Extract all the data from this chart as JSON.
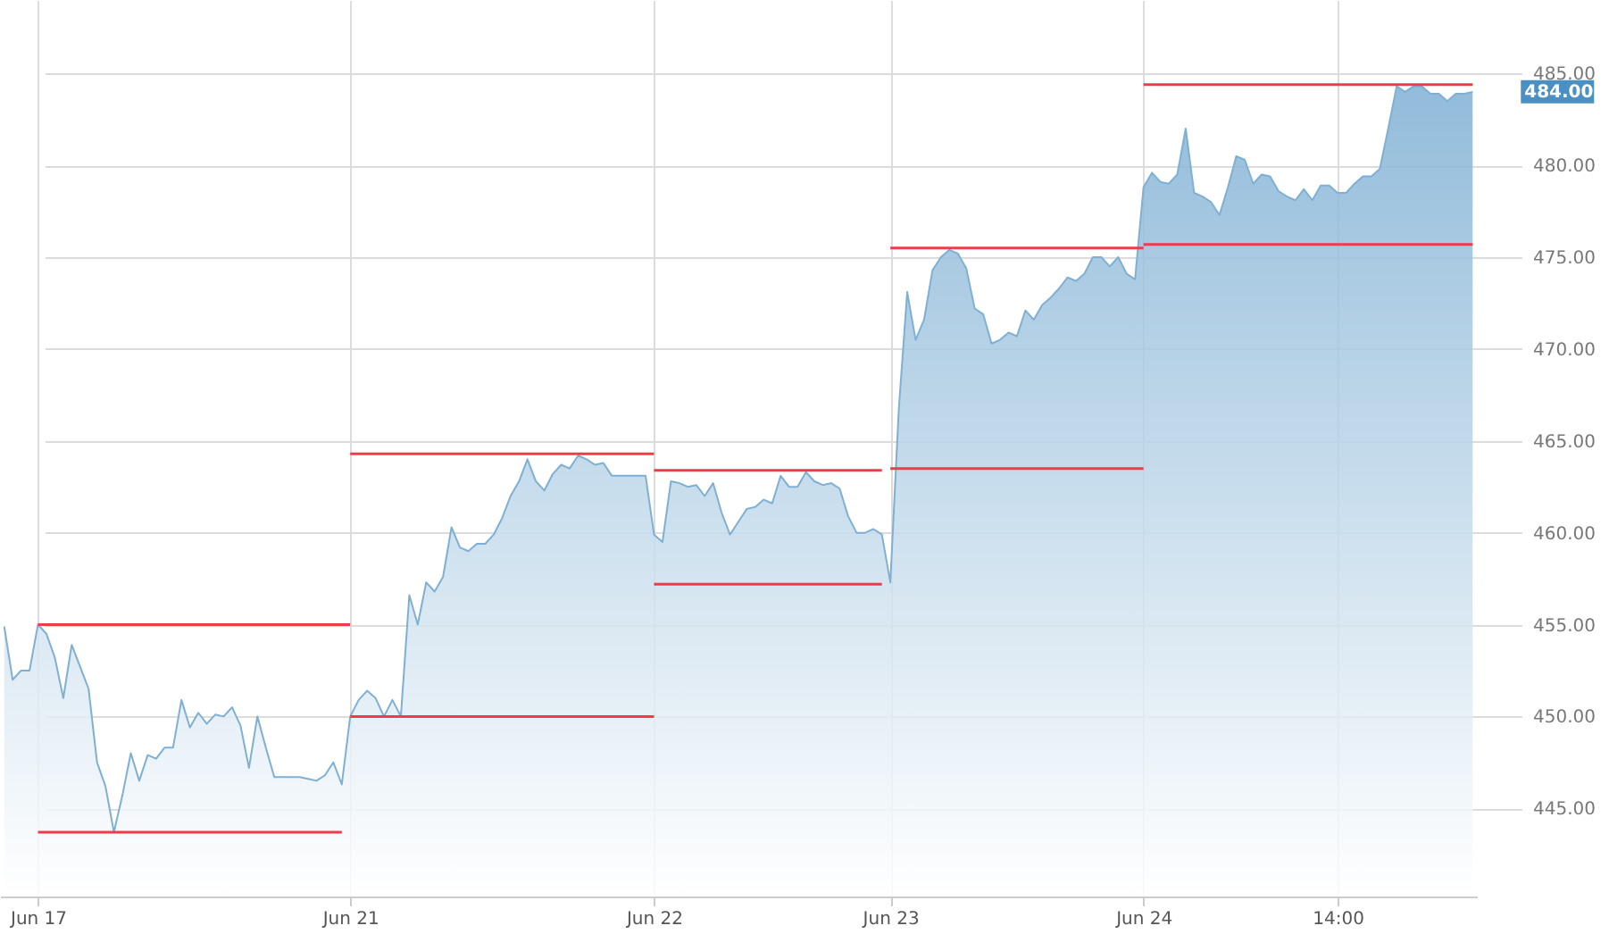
{
  "chart_data": {
    "type": "area",
    "ylim": [
      440.2,
      489
    ],
    "categories": [
      null,
      null,
      null,
      null,
      "Jun 17",
      null,
      null,
      null,
      null,
      null,
      null,
      null,
      null,
      null,
      null,
      null,
      null,
      null,
      null,
      null,
      null,
      null,
      null,
      null,
      null,
      null,
      null,
      null,
      null,
      null,
      null,
      null,
      null,
      null,
      null,
      null,
      null,
      null,
      null,
      null,
      null,
      "Jun 21",
      null,
      null,
      null,
      null,
      null,
      null,
      null,
      null,
      null,
      null,
      null,
      null,
      null,
      null,
      null,
      null,
      null,
      null,
      null,
      null,
      null,
      null,
      null,
      null,
      null,
      null,
      null,
      null,
      null,
      null,
      null,
      null,
      null,
      null,
      null,
      "Jun 22",
      null,
      null,
      null,
      null,
      null,
      null,
      null,
      null,
      null,
      null,
      null,
      null,
      null,
      null,
      null,
      null,
      null,
      null,
      null,
      null,
      null,
      null,
      null,
      null,
      null,
      null,
      null,
      "Jun 23",
      null,
      null,
      null,
      null,
      null,
      null,
      null,
      null,
      null,
      null,
      null,
      null,
      null,
      null,
      null,
      null,
      null,
      null,
      null,
      null,
      null,
      null,
      null,
      null,
      null,
      null,
      null,
      null,
      null,
      "Jun 24",
      null,
      null,
      null,
      null,
      null,
      null,
      null,
      null,
      null,
      null,
      null,
      null,
      null,
      null,
      null,
      null,
      null,
      null,
      null,
      null,
      null,
      null,
      "14:00",
      null,
      null,
      null,
      null,
      null,
      null,
      null,
      null,
      null,
      null,
      null,
      null,
      null,
      null,
      null,
      null
    ],
    "yticks": [
      {
        "value": 445,
        "label": "445.00"
      },
      {
        "value": 450,
        "label": "450.00"
      },
      {
        "value": 455,
        "label": "455.00"
      },
      {
        "value": 460,
        "label": "460.00"
      },
      {
        "value": 465,
        "label": "465.00"
      },
      {
        "value": 470,
        "label": "470.00"
      },
      {
        "value": 475,
        "label": "475.00"
      },
      {
        "value": 480,
        "label": "480.00"
      },
      {
        "value": 485,
        "label": "485.00"
      }
    ],
    "grid": true,
    "annotations": [
      "484.00"
    ],
    "series": [
      {
        "color": "#7fb0d4",
        "values": [
          454.9,
          452.0,
          452.5,
          452.5,
          455.0,
          454.5,
          453.2,
          451.0,
          453.9,
          452.7,
          451.5,
          447.5,
          446.2,
          443.7,
          445.7,
          448.0,
          446.5,
          447.9,
          447.7,
          448.3,
          448.3,
          450.9,
          449.4,
          450.2,
          449.6,
          450.1,
          450.0,
          450.5,
          449.5,
          447.2,
          450.0,
          448.3,
          446.7,
          446.7,
          446.7,
          446.7,
          446.6,
          446.5,
          446.8,
          447.5,
          446.3,
          450.0,
          450.9,
          451.4,
          451.0,
          450.0,
          450.9,
          450.0,
          456.6,
          455.0,
          457.3,
          456.8,
          457.6,
          460.3,
          459.2,
          459.0,
          459.4,
          459.4,
          459.9,
          460.8,
          462.0,
          462.8,
          464.0,
          462.8,
          462.3,
          463.2,
          463.7,
          463.5,
          464.2,
          464.0,
          463.7,
          463.8,
          463.1,
          463.1,
          463.1,
          463.1,
          463.1,
          459.9,
          459.5,
          462.8,
          462.7,
          462.5,
          462.6,
          462.0,
          462.7,
          461.1,
          459.9,
          460.6,
          461.3,
          461.4,
          461.8,
          461.6,
          463.1,
          462.5,
          462.5,
          463.3,
          462.8,
          462.6,
          462.7,
          462.4,
          460.9,
          460.0,
          460.0,
          460.2,
          459.9,
          457.3,
          466.7,
          473.1,
          470.5,
          471.6,
          474.3,
          475.0,
          475.4,
          475.2,
          474.4,
          472.2,
          471.9,
          470.3,
          470.5,
          470.9,
          470.7,
          472.1,
          471.6,
          472.4,
          472.8,
          473.3,
          473.9,
          473.7,
          474.1,
          475.0,
          475.0,
          474.5,
          475.0,
          474.1,
          473.8,
          478.8,
          479.6,
          479.1,
          479.0,
          479.5,
          482.0,
          478.5,
          478.3,
          478.0,
          477.3,
          478.8,
          480.5,
          480.3,
          479.0,
          479.5,
          479.4,
          478.6,
          478.3,
          478.1,
          478.7,
          478.1,
          478.9,
          478.9,
          478.5,
          478.5,
          479.0,
          479.4,
          479.4,
          479.8,
          482.0,
          484.3,
          484.0,
          484.3,
          484.3,
          483.9,
          483.9,
          483.5,
          483.9,
          483.9,
          484.0
        ]
      },
      {
        "type": "line",
        "color": "#ef3b4a",
        "values": [
          null,
          null,
          null,
          null,
          455.0,
          null,
          null,
          null,
          null,
          null,
          null,
          null,
          null,
          null,
          null,
          null,
          null,
          null,
          null,
          null,
          null,
          null,
          null,
          null,
          null,
          null,
          null,
          null,
          null,
          null,
          null,
          null,
          null,
          null,
          null,
          null,
          null,
          null,
          null,
          null,
          null,
          455.0,
          null,
          null,
          null,
          null,
          null,
          null,
          null,
          null,
          null,
          null,
          null,
          null,
          null,
          null,
          null,
          null,
          null,
          null,
          null,
          null,
          null,
          null,
          null,
          null,
          null,
          null,
          null,
          null,
          null,
          null,
          null,
          null,
          null,
          null,
          null,
          null,
          null,
          null,
          null,
          null,
          null,
          null,
          null,
          null,
          null,
          null,
          null,
          null,
          null,
          null,
          null,
          null,
          null,
          null,
          null,
          null,
          null,
          null,
          null,
          null,
          null,
          null,
          null,
          null,
          null,
          null,
          null,
          null,
          null,
          null,
          null,
          null,
          null,
          null,
          null,
          null,
          null,
          null,
          null,
          null,
          null,
          null,
          null,
          null,
          null,
          null,
          null,
          null,
          null,
          null,
          null,
          null,
          null,
          null,
          null,
          null,
          null,
          null,
          null,
          null,
          null,
          null,
          null,
          null,
          null,
          null,
          null,
          null,
          null,
          null,
          null,
          null,
          null,
          null,
          null,
          null,
          null,
          null,
          null,
          null,
          null,
          null,
          null,
          null,
          null,
          null,
          null,
          null,
          null,
          null,
          null,
          null,
          null
        ]
      },
      {
        "type": "line",
        "color": "#ef3b4a",
        "values": [
          null,
          null,
          null,
          null,
          443.7,
          null,
          null,
          null,
          null,
          null,
          null,
          null,
          null,
          null,
          null,
          null,
          null,
          null,
          null,
          null,
          null,
          null,
          null,
          null,
          null,
          null,
          null,
          null,
          null,
          null,
          null,
          null,
          null,
          null,
          null,
          null,
          null,
          null,
          null,
          null,
          443.7,
          null,
          null,
          null,
          null,
          null,
          null,
          null,
          null,
          null,
          null,
          null,
          null,
          null,
          null,
          null,
          null,
          null,
          null,
          null,
          null,
          null,
          null,
          null,
          null,
          null,
          null,
          null,
          null,
          null,
          null,
          null,
          null,
          null,
          null,
          null,
          null,
          null,
          null,
          null,
          null,
          null,
          null,
          null,
          null,
          null,
          null,
          null,
          null,
          null,
          null,
          null,
          null,
          null,
          null,
          null,
          null,
          null,
          null,
          null,
          null,
          null,
          null,
          null,
          null,
          null,
          null,
          null,
          null,
          null,
          null,
          null,
          null,
          null,
          null,
          null,
          null,
          null,
          null,
          null,
          null,
          null,
          null,
          null,
          null,
          null,
          null,
          null,
          null,
          null,
          null,
          null,
          null,
          null,
          null,
          null,
          null,
          null,
          null,
          null,
          null,
          null,
          null,
          null,
          null,
          null,
          null,
          null,
          null,
          null,
          null,
          null,
          null,
          null,
          null,
          null,
          null,
          null,
          null,
          null,
          null,
          null,
          null,
          null,
          null,
          null,
          null,
          null,
          null,
          null,
          null,
          null,
          null,
          null,
          null
        ]
      },
      {
        "type": "line",
        "color": "#ef3b4a",
        "values": [
          null,
          null,
          null,
          null,
          null,
          null,
          null,
          null,
          null,
          null,
          null,
          null,
          null,
          null,
          null,
          null,
          null,
          null,
          null,
          null,
          null,
          null,
          null,
          null,
          null,
          null,
          null,
          null,
          null,
          null,
          null,
          null,
          null,
          null,
          null,
          null,
          null,
          null,
          null,
          null,
          null,
          464.3,
          null,
          null,
          null,
          null,
          null,
          null,
          null,
          null,
          null,
          null,
          null,
          null,
          null,
          null,
          null,
          null,
          null,
          null,
          null,
          null,
          null,
          null,
          null,
          null,
          null,
          null,
          null,
          null,
          null,
          null,
          null,
          null,
          null,
          null,
          null,
          464.3,
          null,
          null,
          null,
          null,
          null,
          null,
          null,
          null,
          null,
          null,
          null,
          null,
          null,
          null,
          null,
          null,
          null,
          null,
          null,
          null,
          null,
          null,
          null,
          null,
          null,
          null,
          null,
          null,
          null,
          null,
          null,
          null,
          null,
          null,
          null,
          null,
          null,
          null,
          null,
          null,
          null,
          null,
          null,
          null,
          null,
          null,
          null,
          null,
          null,
          null,
          null,
          null,
          null,
          null,
          null,
          null,
          null,
          null,
          null,
          null,
          null,
          null,
          null,
          null,
          null,
          null,
          null,
          null,
          null,
          null,
          null,
          null,
          null,
          null,
          null,
          null,
          null,
          null,
          null,
          null,
          null,
          null,
          null,
          null,
          null,
          null,
          null,
          null,
          null,
          null,
          null,
          null,
          null,
          null,
          null,
          null,
          null
        ]
      },
      {
        "type": "line",
        "color": "#ef3b4a",
        "values": [
          null,
          null,
          null,
          null,
          null,
          null,
          null,
          null,
          null,
          null,
          null,
          null,
          null,
          null,
          null,
          null,
          null,
          null,
          null,
          null,
          null,
          null,
          null,
          null,
          null,
          null,
          null,
          null,
          null,
          null,
          null,
          null,
          null,
          null,
          null,
          null,
          null,
          null,
          null,
          null,
          null,
          450.0,
          null,
          null,
          null,
          null,
          null,
          null,
          null,
          null,
          null,
          null,
          null,
          null,
          null,
          null,
          null,
          null,
          null,
          null,
          null,
          null,
          null,
          null,
          null,
          null,
          null,
          null,
          null,
          null,
          null,
          null,
          null,
          null,
          null,
          null,
          null,
          450.0,
          null,
          null,
          null,
          null,
          null,
          null,
          null,
          null,
          null,
          null,
          null,
          null,
          null,
          null,
          null,
          null,
          null,
          null,
          null,
          null,
          null,
          null,
          null,
          null,
          null,
          null,
          null,
          null,
          null,
          null,
          null,
          null,
          null,
          null,
          null,
          null,
          null,
          null,
          null,
          null,
          null,
          null,
          null,
          null,
          null,
          null,
          null,
          null,
          null,
          null,
          null,
          null,
          null,
          null,
          null,
          null,
          null,
          null,
          null,
          null,
          null,
          null,
          null,
          null,
          null,
          null,
          null,
          null,
          null,
          null,
          null,
          null,
          null,
          null,
          null,
          null,
          null,
          null,
          null,
          null,
          null,
          null,
          null,
          null,
          null,
          null,
          null,
          null,
          null,
          null,
          null,
          null,
          null,
          null,
          null,
          null,
          null
        ]
      },
      {
        "type": "line",
        "color": "#ef3b4a",
        "values": [
          null,
          null,
          null,
          null,
          null,
          null,
          null,
          null,
          null,
          null,
          null,
          null,
          null,
          null,
          null,
          null,
          null,
          null,
          null,
          null,
          null,
          null,
          null,
          null,
          null,
          null,
          null,
          null,
          null,
          null,
          null,
          null,
          null,
          null,
          null,
          null,
          null,
          null,
          null,
          null,
          null,
          null,
          null,
          null,
          null,
          null,
          null,
          null,
          null,
          null,
          null,
          null,
          null,
          null,
          null,
          null,
          null,
          null,
          null,
          null,
          null,
          null,
          null,
          null,
          null,
          null,
          null,
          null,
          null,
          null,
          null,
          null,
          null,
          null,
          null,
          null,
          null,
          463.4,
          null,
          null,
          null,
          null,
          null,
          null,
          null,
          null,
          null,
          null,
          null,
          null,
          null,
          null,
          null,
          null,
          null,
          null,
          null,
          null,
          null,
          null,
          null,
          null,
          null,
          null,
          463.4,
          null,
          null,
          null,
          null,
          null,
          null,
          null,
          null,
          null,
          null,
          null,
          null,
          null,
          null,
          null,
          null,
          null,
          null,
          null,
          null,
          null,
          null,
          null,
          null,
          null,
          null,
          null,
          null,
          null,
          null,
          null,
          null,
          null,
          null,
          null,
          null,
          null,
          null,
          null,
          null,
          null,
          null,
          null,
          null,
          null,
          null,
          null,
          null,
          null,
          null,
          null,
          null,
          null,
          null,
          null,
          null,
          null,
          null,
          null,
          null,
          null,
          null,
          null,
          null,
          null,
          null,
          null,
          null,
          null,
          null
        ]
      },
      {
        "type": "line",
        "color": "#ef3b4a",
        "values": [
          null,
          null,
          null,
          null,
          null,
          null,
          null,
          null,
          null,
          null,
          null,
          null,
          null,
          null,
          null,
          null,
          null,
          null,
          null,
          null,
          null,
          null,
          null,
          null,
          null,
          null,
          null,
          null,
          null,
          null,
          null,
          null,
          null,
          null,
          null,
          null,
          null,
          null,
          null,
          null,
          null,
          null,
          null,
          null,
          null,
          null,
          null,
          null,
          null,
          null,
          null,
          null,
          null,
          null,
          null,
          null,
          null,
          null,
          null,
          null,
          null,
          null,
          null,
          null,
          null,
          null,
          null,
          null,
          null,
          null,
          null,
          null,
          null,
          null,
          null,
          null,
          null,
          457.2,
          null,
          null,
          null,
          null,
          null,
          null,
          null,
          null,
          null,
          null,
          null,
          null,
          null,
          null,
          null,
          null,
          null,
          null,
          null,
          null,
          null,
          null,
          null,
          null,
          null,
          null,
          457.2,
          null,
          null,
          null,
          null,
          null,
          null,
          null,
          null,
          null,
          null,
          null,
          null,
          null,
          null,
          null,
          null,
          null,
          null,
          null,
          null,
          null,
          null,
          null,
          null,
          null,
          null,
          null,
          null,
          null,
          null,
          null,
          null,
          null,
          null,
          null,
          null,
          null,
          null,
          null,
          null,
          null,
          null,
          null,
          null,
          null,
          null,
          null,
          null,
          null,
          null,
          null,
          null,
          null,
          null,
          null,
          null,
          null,
          null,
          null,
          null,
          null,
          null,
          null,
          null,
          null,
          null,
          null,
          null,
          null,
          null
        ]
      },
      {
        "type": "line",
        "color": "#ef3b4a",
        "values": [
          null,
          null,
          null,
          null,
          null,
          null,
          null,
          null,
          null,
          null,
          null,
          null,
          null,
          null,
          null,
          null,
          null,
          null,
          null,
          null,
          null,
          null,
          null,
          null,
          null,
          null,
          null,
          null,
          null,
          null,
          null,
          null,
          null,
          null,
          null,
          null,
          null,
          null,
          null,
          null,
          null,
          null,
          null,
          null,
          null,
          null,
          null,
          null,
          null,
          null,
          null,
          null,
          null,
          null,
          null,
          null,
          null,
          null,
          null,
          null,
          null,
          null,
          null,
          null,
          null,
          null,
          null,
          null,
          null,
          null,
          null,
          null,
          null,
          null,
          null,
          null,
          null,
          null,
          null,
          null,
          null,
          null,
          null,
          null,
          null,
          null,
          null,
          null,
          null,
          null,
          null,
          null,
          null,
          null,
          null,
          null,
          null,
          null,
          null,
          null,
          null,
          null,
          null,
          null,
          null,
          475.5,
          null,
          null,
          null,
          null,
          null,
          null,
          null,
          null,
          null,
          null,
          null,
          null,
          null,
          null,
          null,
          null,
          null,
          null,
          null,
          null,
          null,
          null,
          null,
          null,
          null,
          null,
          null,
          null,
          null,
          475.5,
          null,
          null,
          null,
          null,
          null,
          null,
          null,
          null,
          null,
          null,
          null,
          null,
          null,
          null,
          null,
          null,
          null,
          null,
          null,
          null,
          null,
          null,
          null,
          null,
          null,
          null,
          null,
          null,
          null,
          null,
          null,
          null,
          null,
          null,
          null,
          null,
          null,
          null,
          null
        ]
      },
      {
        "type": "line",
        "color": "#ef3b4a",
        "values": [
          null,
          null,
          null,
          null,
          null,
          null,
          null,
          null,
          null,
          null,
          null,
          null,
          null,
          null,
          null,
          null,
          null,
          null,
          null,
          null,
          null,
          null,
          null,
          null,
          null,
          null,
          null,
          null,
          null,
          null,
          null,
          null,
          null,
          null,
          null,
          null,
          null,
          null,
          null,
          null,
          null,
          null,
          null,
          null,
          null,
          null,
          null,
          null,
          null,
          null,
          null,
          null,
          null,
          null,
          null,
          null,
          null,
          null,
          null,
          null,
          null,
          null,
          null,
          null,
          null,
          null,
          null,
          null,
          null,
          null,
          null,
          null,
          null,
          null,
          null,
          null,
          null,
          null,
          null,
          null,
          null,
          null,
          null,
          null,
          null,
          null,
          null,
          null,
          null,
          null,
          null,
          null,
          null,
          null,
          null,
          null,
          null,
          null,
          null,
          null,
          null,
          null,
          null,
          null,
          null,
          463.5,
          null,
          null,
          null,
          null,
          null,
          null,
          null,
          null,
          null,
          null,
          null,
          null,
          null,
          null,
          null,
          null,
          null,
          null,
          null,
          null,
          null,
          null,
          null,
          null,
          null,
          null,
          null,
          null,
          null,
          463.5,
          null,
          null,
          null,
          null,
          null,
          null,
          null,
          null,
          null,
          null,
          null,
          null,
          null,
          null,
          null,
          null,
          null,
          null,
          null,
          null,
          null,
          null,
          null,
          null,
          null,
          null,
          null,
          null,
          null,
          null,
          null,
          null,
          null,
          null,
          null,
          null,
          null,
          null,
          null
        ]
      },
      {
        "type": "line",
        "color": "#ef3b4a",
        "values": [
          null,
          null,
          null,
          null,
          null,
          null,
          null,
          null,
          null,
          null,
          null,
          null,
          null,
          null,
          null,
          null,
          null,
          null,
          null,
          null,
          null,
          null,
          null,
          null,
          null,
          null,
          null,
          null,
          null,
          null,
          null,
          null,
          null,
          null,
          null,
          null,
          null,
          null,
          null,
          null,
          null,
          null,
          null,
          null,
          null,
          null,
          null,
          null,
          null,
          null,
          null,
          null,
          null,
          null,
          null,
          null,
          null,
          null,
          null,
          null,
          null,
          null,
          null,
          null,
          null,
          null,
          null,
          null,
          null,
          null,
          null,
          null,
          null,
          null,
          null,
          null,
          null,
          null,
          null,
          null,
          null,
          null,
          null,
          null,
          null,
          null,
          null,
          null,
          null,
          null,
          null,
          null,
          null,
          null,
          null,
          null,
          null,
          null,
          null,
          null,
          null,
          null,
          null,
          null,
          null,
          null,
          null,
          null,
          null,
          null,
          null,
          null,
          null,
          null,
          null,
          null,
          null,
          null,
          null,
          null,
          null,
          null,
          null,
          null,
          null,
          null,
          null,
          null,
          null,
          null,
          null,
          null,
          null,
          null,
          null,
          484.4,
          null,
          null,
          null,
          null,
          null,
          null,
          null,
          null,
          null,
          null,
          null,
          null,
          null,
          null,
          null,
          null,
          null,
          null,
          null,
          null,
          null,
          null,
          null,
          null,
          null,
          null,
          null,
          null,
          null,
          null,
          null,
          null,
          null,
          null,
          null,
          null,
          null,
          null,
          484.4
        ]
      },
      {
        "type": "line",
        "color": "#ef3b4a",
        "values": [
          null,
          null,
          null,
          null,
          null,
          null,
          null,
          null,
          null,
          null,
          null,
          null,
          null,
          null,
          null,
          null,
          null,
          null,
          null,
          null,
          null,
          null,
          null,
          null,
          null,
          null,
          null,
          null,
          null,
          null,
          null,
          null,
          null,
          null,
          null,
          null,
          null,
          null,
          null,
          null,
          null,
          null,
          null,
          null,
          null,
          null,
          null,
          null,
          null,
          null,
          null,
          null,
          null,
          null,
          null,
          null,
          null,
          null,
          null,
          null,
          null,
          null,
          null,
          null,
          null,
          null,
          null,
          null,
          null,
          null,
          null,
          null,
          null,
          null,
          null,
          null,
          null,
          null,
          null,
          null,
          null,
          null,
          null,
          null,
          null,
          null,
          null,
          null,
          null,
          null,
          null,
          null,
          null,
          null,
          null,
          null,
          null,
          null,
          null,
          null,
          null,
          null,
          null,
          null,
          null,
          null,
          null,
          null,
          null,
          null,
          null,
          null,
          null,
          null,
          null,
          null,
          null,
          null,
          null,
          null,
          null,
          null,
          null,
          null,
          null,
          null,
          null,
          null,
          null,
          null,
          null,
          null,
          null,
          null,
          null,
          475.7,
          null,
          null,
          null,
          null,
          null,
          null,
          null,
          null,
          null,
          null,
          null,
          null,
          null,
          null,
          null,
          null,
          null,
          null,
          null,
          null,
          null,
          null,
          null,
          null,
          null,
          null,
          null,
          null,
          null,
          null,
          null,
          null,
          null,
          null,
          null,
          null,
          null,
          null,
          475.7
        ]
      }
    ]
  }
}
